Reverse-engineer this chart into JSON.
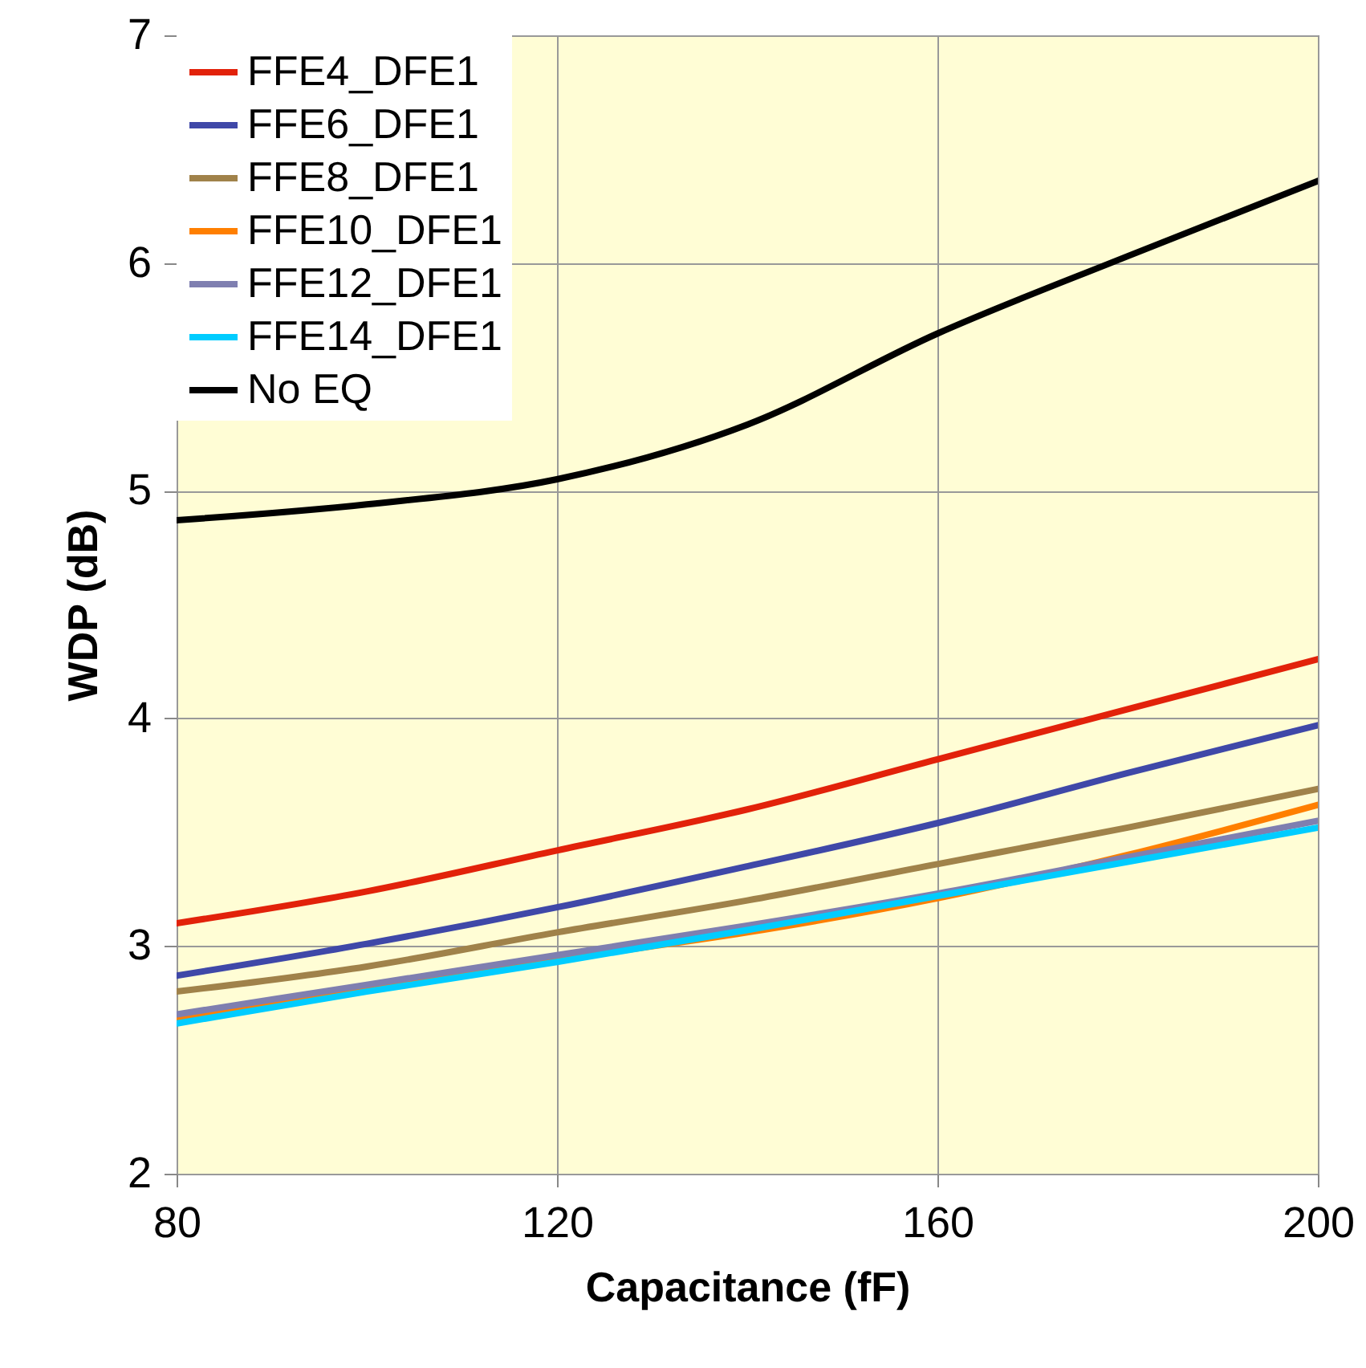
{
  "chart_data": {
    "type": "line",
    "xlabel": "Capacitance (fF)",
    "ylabel": "WDP (dB)",
    "x": [
      80,
      100,
      120,
      140,
      160,
      180,
      200
    ],
    "xlim": [
      80,
      200
    ],
    "xticks": [
      80,
      120,
      160,
      200
    ],
    "ylim": [
      2,
      7
    ],
    "yticks": [
      2,
      3,
      4,
      5,
      6,
      7
    ],
    "grid": true,
    "legend": "top left",
    "marker": "none",
    "line_style": "solid",
    "series": [
      {
        "name": "FFE4_DFE1",
        "color": "#e2220a",
        "values": [
          3.1,
          3.24,
          3.42,
          3.6,
          3.82,
          4.04,
          4.26
        ]
      },
      {
        "name": "FFE6_DFE1",
        "color": "#3f48a8",
        "values": [
          2.87,
          3.01,
          3.17,
          3.35,
          3.54,
          3.76,
          3.97
        ]
      },
      {
        "name": "FFE8_DFE1",
        "color": "#a0824a",
        "values": [
          2.8,
          2.91,
          3.06,
          3.2,
          3.36,
          3.52,
          3.69
        ]
      },
      {
        "name": "FFE10_DFE1",
        "color": "#ff7f00",
        "values": [
          2.68,
          2.81,
          2.94,
          3.06,
          3.21,
          3.4,
          3.62
        ]
      },
      {
        "name": "FFE12_DFE1",
        "color": "#7f7fb0",
        "values": [
          2.7,
          2.83,
          2.96,
          3.09,
          3.23,
          3.39,
          3.55
        ]
      },
      {
        "name": "FFE14_DFE1",
        "color": "#00ccff",
        "values": [
          2.66,
          2.8,
          2.93,
          3.07,
          3.22,
          3.37,
          3.52
        ]
      },
      {
        "name": "No EQ",
        "color": "#000000",
        "values": [
          4.87,
          4.94,
          5.05,
          5.29,
          5.69,
          6.03,
          6.36
        ]
      }
    ]
  }
}
